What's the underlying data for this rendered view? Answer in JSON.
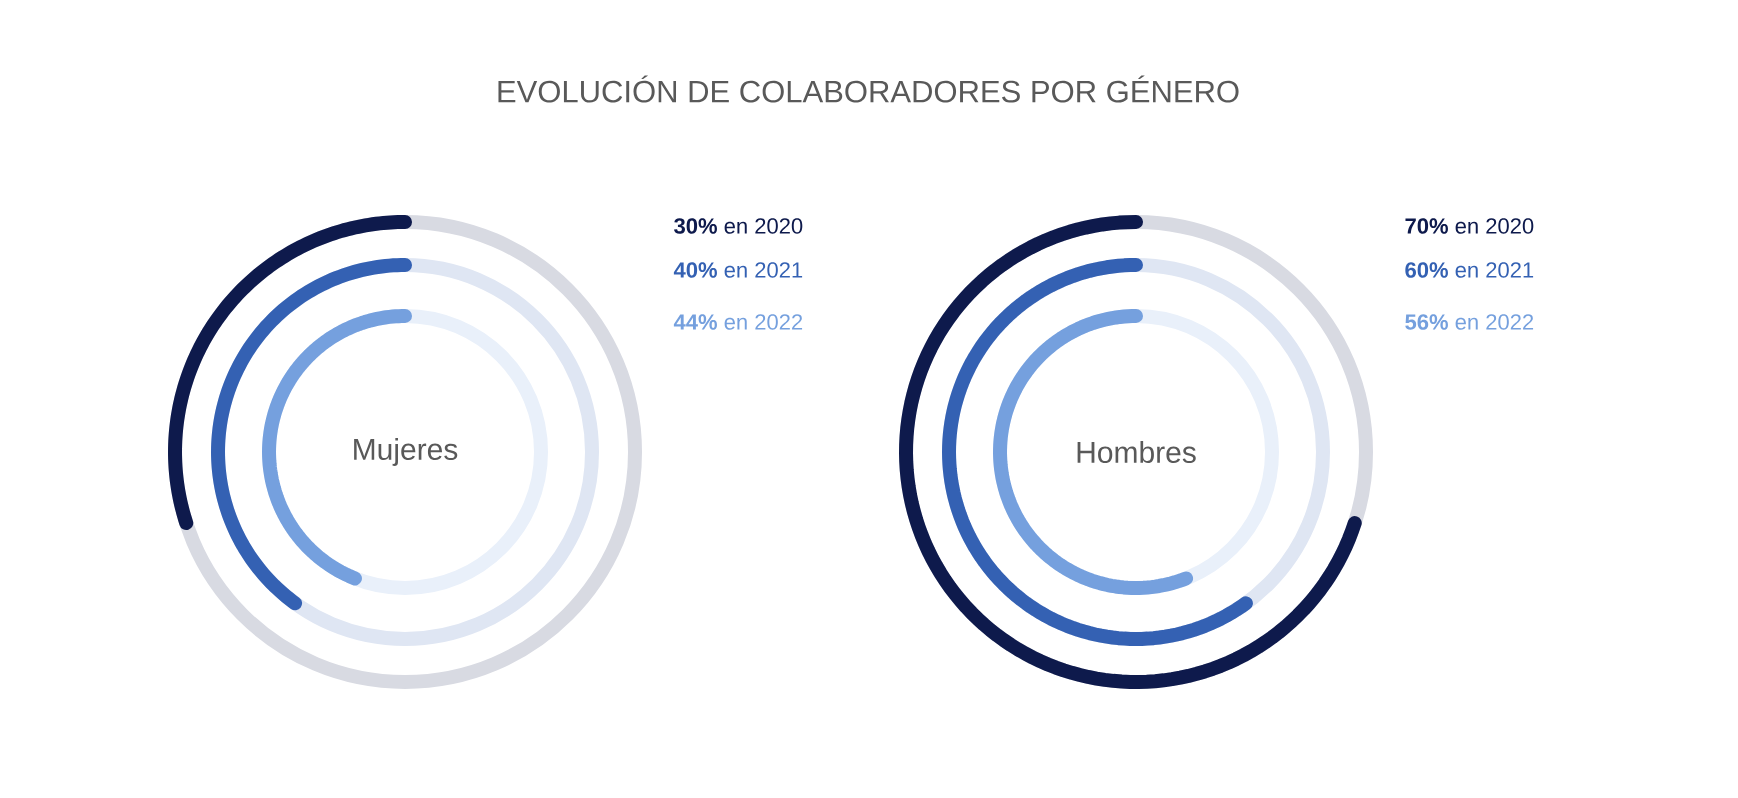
{
  "chart_data": [
    {
      "type": "other",
      "title": "EVOLUCIÓN DE COLABORADORES POR GÉNERO",
      "annotations": [
        "Mujeres"
      ],
      "categories": [
        "en 2020",
        "en 2021",
        "en 2022"
      ],
      "values": [
        30,
        40,
        44
      ],
      "value_labels": [
        "30%",
        "40%",
        "44%"
      ],
      "colors": [
        "#0e1a4c",
        "#3461b3",
        "#75a0de"
      ]
    },
    {
      "type": "other",
      "annotations": [
        "Hombres"
      ],
      "categories": [
        "en 2020",
        "en 2021",
        "en 2022"
      ],
      "values": [
        70,
        60,
        56
      ],
      "value_labels": [
        "70%",
        "60%",
        "56%"
      ],
      "colors": [
        "#0e1a4c",
        "#3461b3",
        "#75a0de"
      ]
    }
  ]
}
